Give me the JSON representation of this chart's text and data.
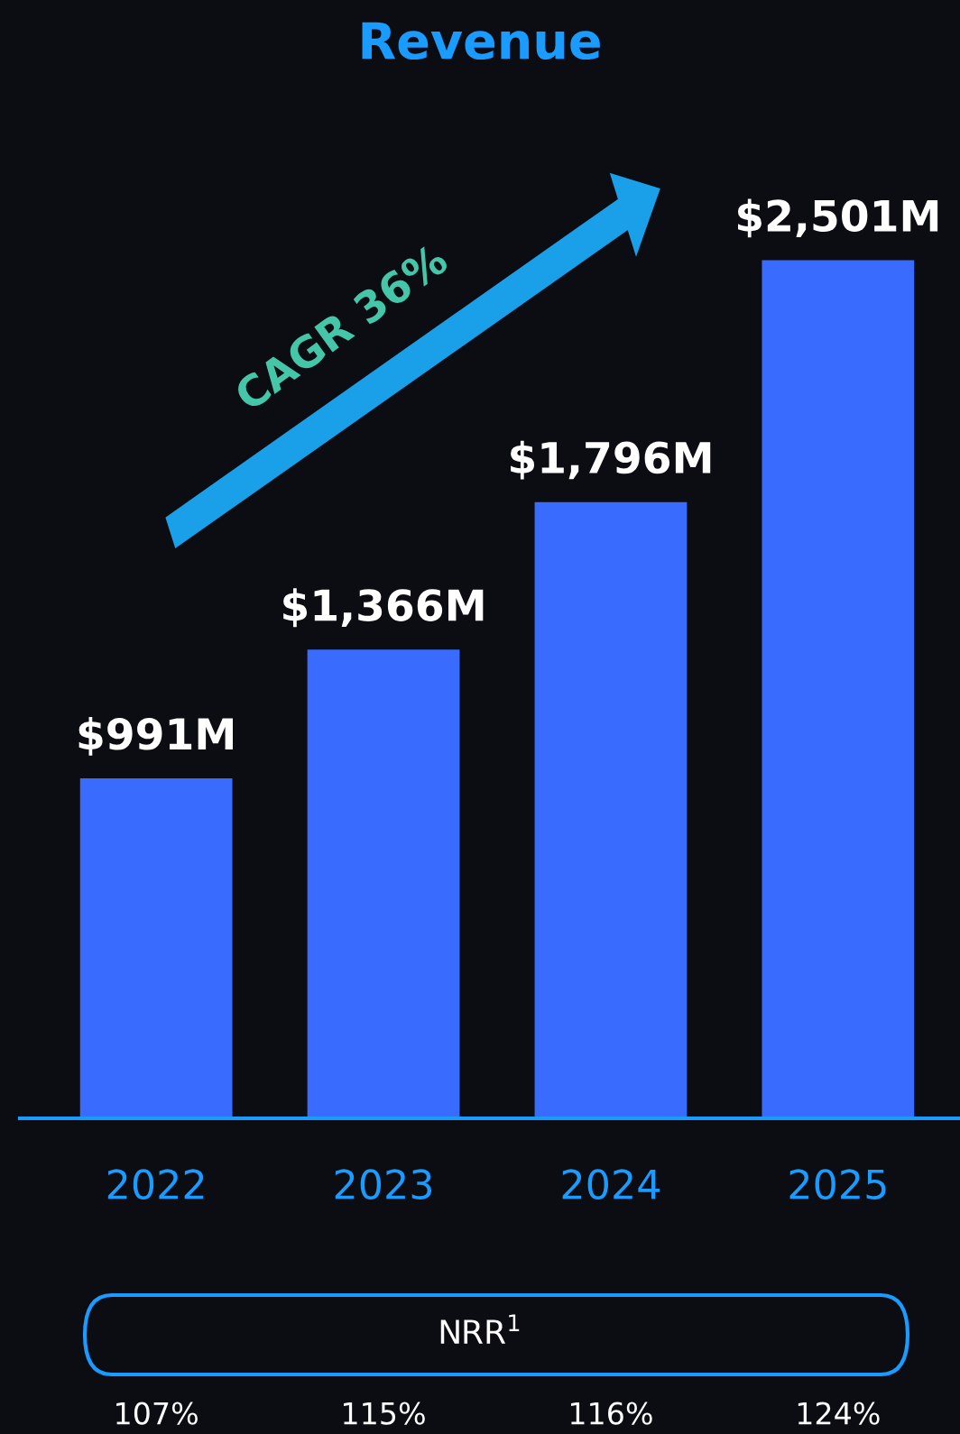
{
  "chart_data": {
    "type": "bar",
    "title": "Revenue",
    "categories": [
      "2022",
      "2023",
      "2024",
      "2025"
    ],
    "values": [
      991,
      1366,
      1796,
      2501
    ],
    "color": "#3a6bff",
    "value_labels": [
      "$991M",
      "$1,366M",
      "$1,796M",
      "$2,501M"
    ],
    "grid": false,
    "legend": false,
    "annotations": [
      "CAGR 36%",
      "NRR$^{1}$",
      "107%",
      "115%",
      "116%",
      "124%"
    ]
  }
}
